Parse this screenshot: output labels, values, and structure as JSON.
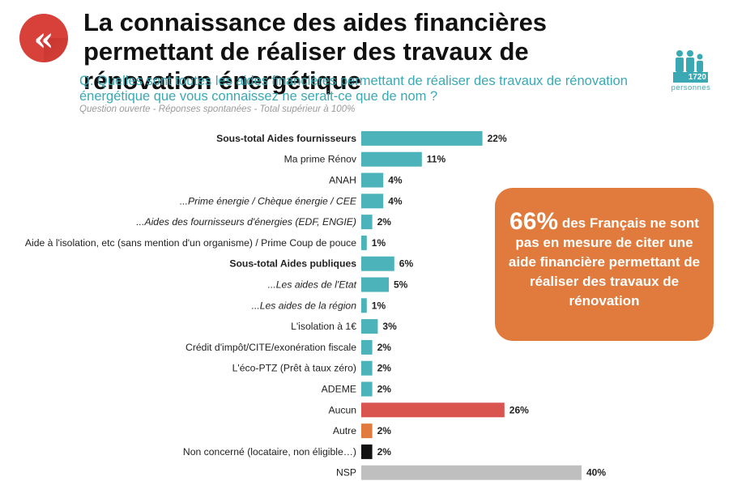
{
  "title": "La connaissance des aides financières permettant de réaliser des travaux de rénovation énergétique",
  "question": "Q. Quelles sont toutes les aides financières permettant de réaliser des travaux de rénovation énergétique que vous connaissez ne serait-ce que de nom ?",
  "note": "Question ouverte - Réponses spontanées - Total supérieur à 100%",
  "sample": {
    "count": "1720",
    "label": "personnes",
    "color": "#3aa9b3"
  },
  "callout": {
    "highlight": "66%",
    "text": "des Français ne sont pas en mesure de citer une aide financière permettant de réaliser des travaux de rénovation",
    "color": "#e07b3d"
  },
  "chart_data": {
    "type": "bar",
    "orientation": "horizontal",
    "unit": "%",
    "xlim": [
      0,
      40
    ],
    "categories": [
      "Sous-total Aides fournisseurs",
      "Ma prime Rénov",
      "ANAH",
      "...Prime énergie / Chèque énergie / CEE",
      "...Aides des fournisseurs d'énergies (EDF, ENGIE)",
      "Aide à l'isolation, etc (sans mention d'un organisme) / Prime Coup de pouce",
      "Sous-total Aides publiques",
      "...Les aides de l'Etat",
      "...Les aides de la région",
      "L'isolation à 1€",
      "Crédit d'impôt/CITE/exonération fiscale",
      "L'éco-PTZ (Prêt à taux zéro)",
      "ADEME",
      "Aucun",
      "Autre",
      "Non concerné (locataire, non éligible…)",
      "NSP"
    ],
    "values": [
      22,
      11,
      4,
      4,
      2,
      1,
      6,
      5,
      1,
      3,
      2,
      2,
      2,
      26,
      2,
      2,
      40
    ],
    "value_labels": [
      "22%",
      "11%",
      "4%",
      "4%",
      "2%",
      "1%",
      "6%",
      "5%",
      "1%",
      "3%",
      "2%",
      "2%",
      "2%",
      "26%",
      "2%",
      "2%",
      "40%"
    ],
    "bold": [
      true,
      false,
      false,
      false,
      false,
      false,
      true,
      false,
      false,
      false,
      false,
      false,
      false,
      false,
      false,
      false,
      false
    ],
    "italic": [
      false,
      false,
      false,
      true,
      true,
      false,
      false,
      true,
      true,
      false,
      false,
      false,
      false,
      false,
      false,
      false,
      false
    ],
    "colors": [
      "#4db3ba",
      "#4db3ba",
      "#4db3ba",
      "#4db3ba",
      "#4db3ba",
      "#4db3ba",
      "#4db3ba",
      "#4db3ba",
      "#4db3ba",
      "#4db3ba",
      "#4db3ba",
      "#4db3ba",
      "#4db3ba",
      "#d9534f",
      "#e07b3d",
      "#111111",
      "#bfbfbf"
    ],
    "grid": false,
    "legend": "none"
  }
}
